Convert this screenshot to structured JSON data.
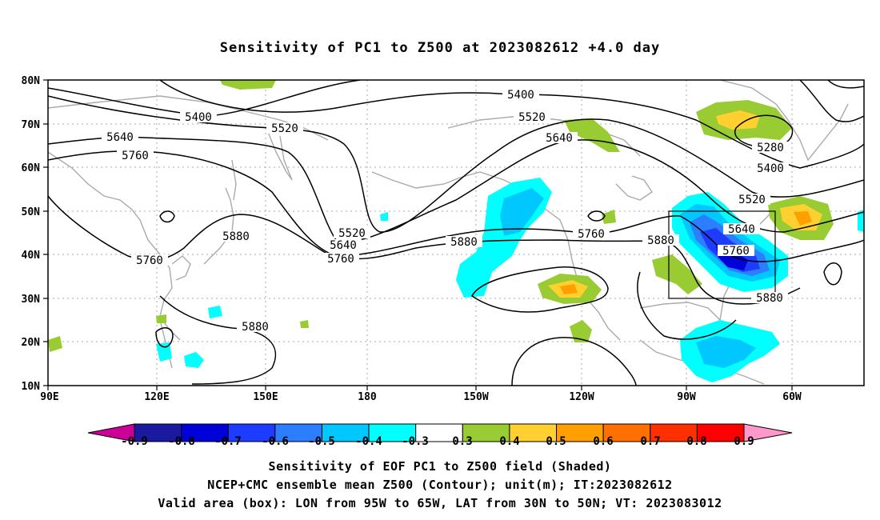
{
  "title": "Sensitivity of PC1 to Z500 at 2023082612 +4.0 day",
  "lat_labels": [
    "80N",
    "70N",
    "60N",
    "50N",
    "40N",
    "30N",
    "20N",
    "10N"
  ],
  "lon_labels": [
    "90E",
    "120E",
    "150E",
    "180",
    "150W",
    "120W",
    "90W",
    "60W"
  ],
  "contour_labels": [
    "5400",
    "5400",
    "5520",
    "5520",
    "5640",
    "5640",
    "5760",
    "5760",
    "5280",
    "5400",
    "5520",
    "5520",
    "5640",
    "5760",
    "5880",
    "5880",
    "5760",
    "5880",
    "5760",
    "5640",
    "5880",
    "5880"
  ],
  "colorbar": {
    "labels": [
      "-0.9",
      "-0.8",
      "-0.7",
      "-0.6",
      "-0.5",
      "-0.4",
      "-0.3",
      "0.3",
      "0.4",
      "0.5",
      "0.6",
      "0.7",
      "0.8",
      "0.9"
    ],
    "colors": [
      "#1a1aa0",
      "#0000d8",
      "#1e3cff",
      "#2d7dff",
      "#00c8ff",
      "#00ffff",
      "#ffffff",
      "#99cc33",
      "#ffd030",
      "#ffa000",
      "#ff7000",
      "#ff3000",
      "#ff0000"
    ],
    "low_end_color": "#cc0099",
    "high_end_color": "#ff99cc"
  },
  "valid_box": {
    "lon_from": "95W",
    "lon_to": "65W",
    "lat_from": "30N",
    "lat_to": "50N"
  },
  "captions": {
    "line1": "Sensitivity of EOF PC1 to Z500 field (Shaded)",
    "line2": "NCEP+CMC ensemble mean Z500 (Contour); unit(m); IT:2023082612",
    "line3": "Valid area (box): LON from 95W to 65W, LAT from 30N to 50N; VT: 2023083012"
  }
}
